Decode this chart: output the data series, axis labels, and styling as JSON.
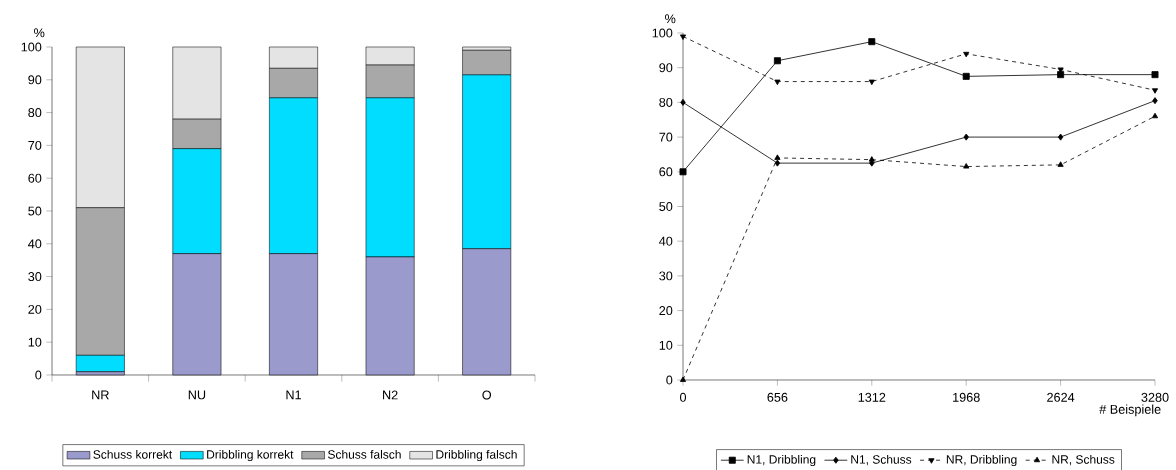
{
  "chart_data": [
    {
      "type": "bar",
      "stacked": true,
      "ylabel": "%",
      "categories": [
        "NR",
        "NU",
        "N1",
        "N2",
        "O"
      ],
      "ylim": [
        0,
        100
      ],
      "yticks": [
        0,
        10,
        20,
        30,
        40,
        50,
        60,
        70,
        80,
        90,
        100
      ],
      "legend": "bottom",
      "series": [
        {
          "name": "Schuss korrekt",
          "color": "#9a9acc",
          "values": [
            1,
            37,
            37,
            36,
            38.5
          ]
        },
        {
          "name": "Dribbling korrekt",
          "color": "#00ddff",
          "values": [
            5,
            32,
            47.5,
            48.5,
            53
          ]
        },
        {
          "name": "Schuss falsch",
          "color": "#a8a8a8",
          "values": [
            45,
            9,
            9,
            10,
            7.5
          ]
        },
        {
          "name": "Dribbling falsch",
          "color": "#e4e4e4",
          "values": [
            49,
            22,
            6.5,
            5.5,
            1
          ]
        }
      ]
    },
    {
      "type": "line",
      "ylabel": "%",
      "xlabel": "# Beispiele",
      "x": [
        0,
        656,
        1312,
        1968,
        2624,
        3280
      ],
      "xlim": [
        0,
        3280
      ],
      "xticks": [
        0,
        656,
        1312,
        1968,
        2624,
        3280
      ],
      "ylim": [
        0,
        100
      ],
      "yticks": [
        0,
        10,
        20,
        30,
        40,
        50,
        60,
        70,
        80,
        90,
        100
      ],
      "legend": "bottom",
      "series": [
        {
          "name": "N1, Dribbling",
          "color": "#000000",
          "marker": "square",
          "line_style": "solid",
          "values": [
            60,
            92,
            97.5,
            87.5,
            88,
            88
          ]
        },
        {
          "name": "N1, Schuss",
          "color": "#000000",
          "marker": "diamond",
          "line_style": "solid",
          "values": [
            80,
            62.5,
            62.5,
            70,
            70,
            80.5
          ]
        },
        {
          "name": "NR, Dribbling",
          "color": "#000000",
          "marker": "triangle_down",
          "line_style": "dashed",
          "values": [
            99,
            86,
            86,
            94,
            89.5,
            83.5
          ]
        },
        {
          "name": "NR, Schuss",
          "color": "#000000",
          "marker": "triangle",
          "line_style": "dashed",
          "values": [
            0,
            64,
            63.5,
            61.5,
            62,
            76
          ]
        }
      ]
    }
  ]
}
